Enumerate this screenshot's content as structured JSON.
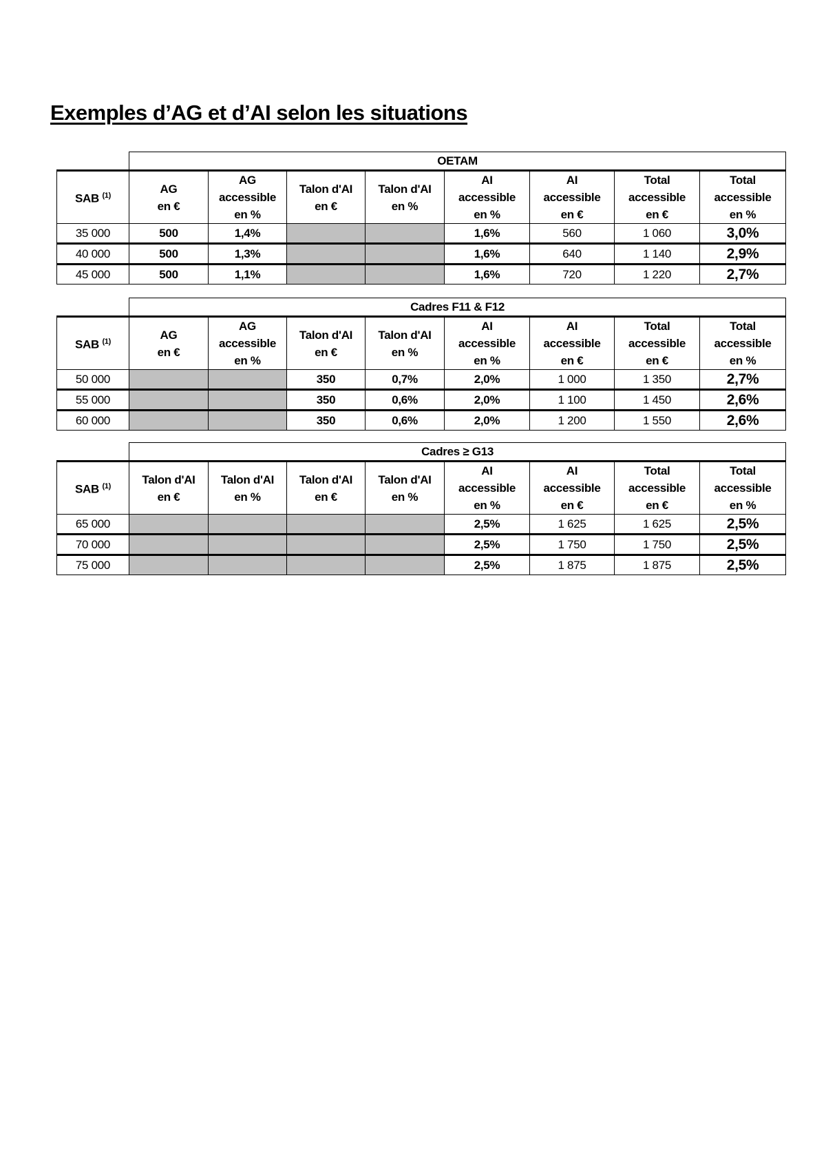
{
  "title": "Exemples d’AG et d’AI selon les situations",
  "tables": [
    {
      "group": "OETAM",
      "headers": [
        "SAB",
        "AG\nen €",
        "AG\naccessible\nen %",
        "Talon d'AI\nen €",
        "Talon d'AI\nen %",
        "AI\naccessible\nen %",
        "AI\naccessible\nen €",
        "Total\naccessible\nen €",
        "Total\naccessible\nen %"
      ],
      "sab_note": "(1)",
      "rows": [
        [
          "35 000",
          "500",
          "1,4%",
          null,
          null,
          "1,6%",
          "560",
          "1 060",
          "3,0%"
        ],
        [
          "40 000",
          "500",
          "1,3%",
          null,
          null,
          "1,6%",
          "640",
          "1 140",
          "2,9%"
        ],
        [
          "45 000",
          "500",
          "1,1%",
          null,
          null,
          "1,6%",
          "720",
          "1 220",
          "2,7%"
        ]
      ]
    },
    {
      "group": "Cadres F11 & F12",
      "headers": [
        "SAB",
        "AG\nen €",
        "AG\naccessible\nen %",
        "Talon d'AI\nen €",
        "Talon d'AI\nen %",
        "AI\naccessible\nen %",
        "AI\naccessible\nen €",
        "Total\naccessible\nen €",
        "Total\naccessible\nen %"
      ],
      "sab_note": "(1)",
      "rows": [
        [
          "50 000",
          null,
          null,
          "350",
          "0,7%",
          "2,0%",
          "1 000",
          "1 350",
          "2,7%"
        ],
        [
          "55 000",
          null,
          null,
          "350",
          "0,6%",
          "2,0%",
          "1 100",
          "1 450",
          "2,6%"
        ],
        [
          "60 000",
          null,
          null,
          "350",
          "0,6%",
          "2,0%",
          "1 200",
          "1 550",
          "2,6%"
        ]
      ]
    },
    {
      "group": "Cadres ≥ G13",
      "headers": [
        "SAB",
        "Talon d'AI\nen €",
        "Talon d'AI\nen %",
        "Talon d'AI\nen €",
        "Talon d'AI\nen %",
        "AI\naccessible\nen %",
        "AI\naccessible\nen €",
        "Total\naccessible\nen €",
        "Total\naccessible\nen %"
      ],
      "sab_note": "(1)",
      "rows": [
        [
          "65 000",
          null,
          null,
          null,
          null,
          "2,5%",
          "1 625",
          "1 625",
          "2,5%"
        ],
        [
          "70 000",
          null,
          null,
          null,
          null,
          "2,5%",
          "1 750",
          "1 750",
          "2,5%"
        ],
        [
          "75 000",
          null,
          null,
          null,
          null,
          "2,5%",
          "1 875",
          "1 875",
          "2,5%"
        ]
      ]
    }
  ],
  "colors": {
    "shaded_cell": "#c0c0c0"
  }
}
